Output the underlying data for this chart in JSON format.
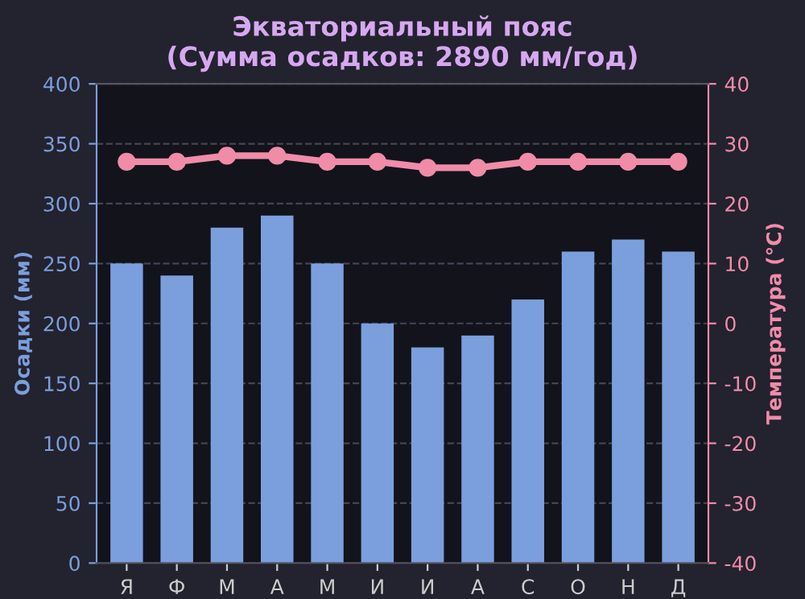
{
  "chart_data": {
    "type": "bar",
    "title": "Экваториальный пояс\n(Сумма осадков: 2890 мм/год)",
    "ylabel": "Осадки (мм)",
    "y2label": "Температура (°C)",
    "categories": [
      "Я",
      "Ф",
      "М",
      "А",
      "М",
      "И",
      "И",
      "А",
      "С",
      "О",
      "Н",
      "Д"
    ],
    "series": [
      {
        "color": "#7b9fdc",
        "values": [
          250,
          240,
          280,
          290,
          250,
          200,
          180,
          190,
          220,
          260,
          270,
          260
        ]
      },
      {
        "type": "line",
        "axis": "y2",
        "color": "#f08ca8",
        "values": [
          27,
          27,
          28,
          28,
          27,
          27,
          26,
          26,
          27,
          27,
          27,
          27
        ]
      }
    ],
    "ylim": [
      0,
      400
    ],
    "yticks": [
      0,
      50,
      100,
      150,
      200,
      250,
      300,
      350,
      400
    ],
    "y2lim": [
      -40,
      40
    ],
    "y2ticks": [
      -40,
      -30,
      -20,
      -10,
      0,
      10,
      20,
      30,
      40
    ],
    "grid": "y",
    "marker": "circle",
    "line_style": "solid",
    "legend": false
  }
}
